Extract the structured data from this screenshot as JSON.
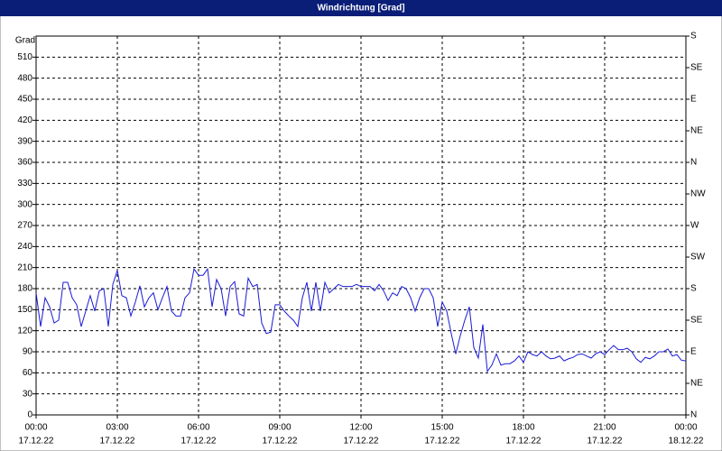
{
  "chart_data": {
    "type": "line",
    "title": "Windrichtung [Grad]",
    "ylabel": "Grad",
    "xlim": [
      0,
      1440
    ],
    "ylim": [
      0,
      540
    ],
    "y2lim": [
      0,
      540
    ],
    "xticks": [
      {
        "value": 0,
        "label": "00:00"
      },
      {
        "value": 180,
        "label": "03:00"
      },
      {
        "value": 360,
        "label": "06:00"
      },
      {
        "value": 540,
        "label": "09:00"
      },
      {
        "value": 720,
        "label": "12:00"
      },
      {
        "value": 900,
        "label": "15:00"
      },
      {
        "value": 1080,
        "label": "18:00"
      },
      {
        "value": 1260,
        "label": "21:00"
      },
      {
        "value": 1440,
        "label": "00:00"
      }
    ],
    "xtick_dates": [
      "17.12.22",
      "17.12.22",
      "17.12.22",
      "17.12.22",
      "17.12.22",
      "17.12.22",
      "17.12.22",
      "17.12.22",
      "18.12.22"
    ],
    "yticks": [
      0,
      30,
      60,
      90,
      120,
      150,
      180,
      210,
      240,
      270,
      300,
      330,
      360,
      390,
      420,
      450,
      480,
      510
    ],
    "y2ticks": [
      {
        "value": 0,
        "label": "N"
      },
      {
        "value": 45,
        "label": "NE"
      },
      {
        "value": 90,
        "label": "E"
      },
      {
        "value": 135,
        "label": "SE"
      },
      {
        "value": 180,
        "label": "S"
      },
      {
        "value": 225,
        "label": "SW"
      },
      {
        "value": 270,
        "label": "W"
      },
      {
        "value": 315,
        "label": "NW"
      },
      {
        "value": 360,
        "label": "N"
      },
      {
        "value": 405,
        "label": "NE"
      },
      {
        "value": 450,
        "label": "E"
      },
      {
        "value": 495,
        "label": "SE"
      },
      {
        "value": 540,
        "label": "S"
      }
    ],
    "grid": true,
    "color": "#1a1ad6",
    "x": [
      0,
      10,
      20,
      30,
      40,
      50,
      60,
      70,
      80,
      90,
      100,
      110,
      120,
      130,
      140,
      150,
      160,
      170,
      180,
      190,
      200,
      210,
      220,
      230,
      240,
      250,
      260,
      270,
      280,
      290,
      300,
      310,
      320,
      330,
      340,
      350,
      360,
      370,
      380,
      390,
      400,
      410,
      420,
      430,
      440,
      450,
      460,
      470,
      480,
      490,
      500,
      510,
      520,
      530,
      540,
      550,
      560,
      570,
      580,
      590,
      600,
      610,
      620,
      630,
      640,
      650,
      660,
      670,
      680,
      690,
      700,
      710,
      720,
      730,
      740,
      750,
      760,
      770,
      780,
      790,
      800,
      810,
      820,
      830,
      840,
      850,
      860,
      870,
      880,
      890,
      900,
      910,
      920,
      930,
      940,
      950,
      960,
      970,
      980,
      990,
      1000,
      1010,
      1020,
      1030,
      1040,
      1050,
      1060,
      1070,
      1080,
      1090,
      1100,
      1110,
      1120,
      1130,
      1140,
      1150,
      1160,
      1170,
      1180,
      1190,
      1200,
      1210,
      1220,
      1230,
      1240,
      1250,
      1260,
      1270,
      1280,
      1290,
      1300,
      1310,
      1320,
      1330,
      1340,
      1350,
      1360,
      1370,
      1380,
      1390,
      1400,
      1410,
      1420,
      1430,
      1440
    ],
    "values": [
      174,
      126,
      167,
      154,
      131,
      135,
      189,
      189,
      167,
      157,
      126,
      148,
      170,
      148,
      177,
      180,
      126,
      186,
      206,
      170,
      167,
      141,
      161,
      184,
      154,
      167,
      174,
      150,
      167,
      183,
      148,
      141,
      141,
      167,
      174,
      208,
      199,
      199,
      208,
      154,
      193,
      180,
      141,
      183,
      190,
      144,
      141,
      195,
      183,
      186,
      131,
      116,
      118,
      157,
      157,
      148,
      141,
      135,
      126,
      167,
      189,
      148,
      189,
      148,
      189,
      174,
      180,
      186,
      183,
      183,
      183,
      186,
      183,
      183,
      183,
      177,
      186,
      177,
      163,
      174,
      170,
      183,
      180,
      167,
      148,
      167,
      180,
      180,
      167,
      126,
      161,
      148,
      116,
      87,
      113,
      135,
      154,
      96,
      81,
      129,
      62,
      71,
      87,
      71,
      73,
      73,
      77,
      84,
      75,
      90,
      86,
      84,
      90,
      84,
      80,
      81,
      84,
      77,
      80,
      82,
      86,
      87,
      84,
      81,
      87,
      90,
      86,
      93,
      99,
      93,
      93,
      95,
      90,
      80,
      75,
      82,
      80,
      84,
      90,
      90,
      94,
      84,
      86,
      78,
      77
    ]
  }
}
